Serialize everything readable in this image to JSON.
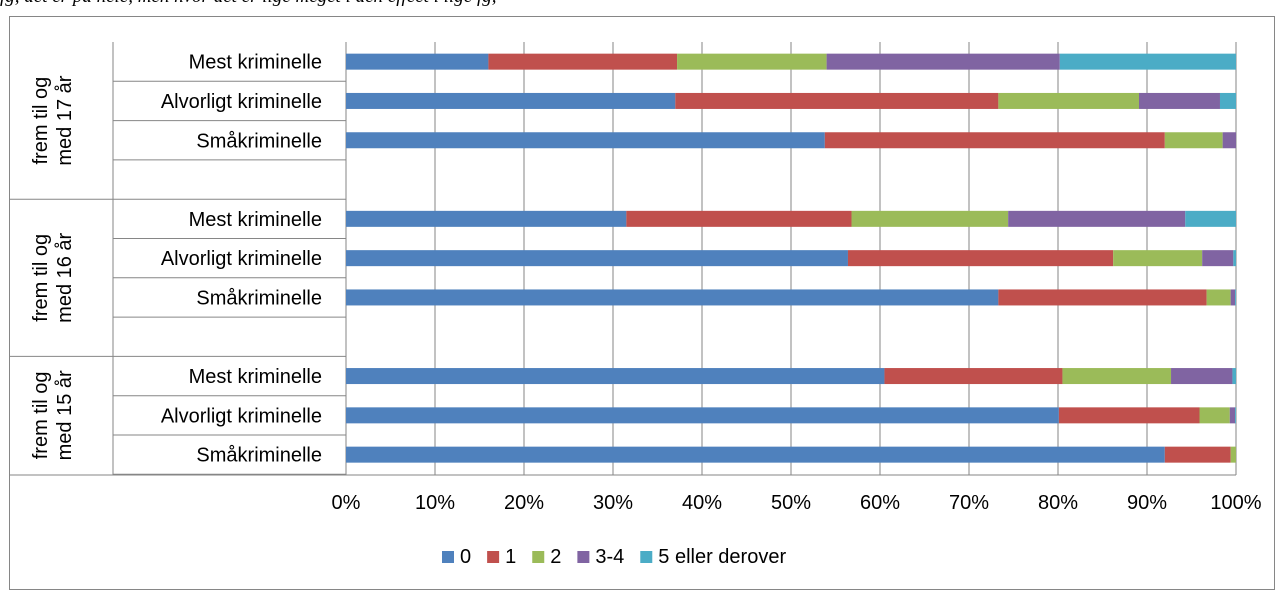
{
  "header_fragment": "fg, det er på hele, men hvor det er lige meget i den effect i lige fg,",
  "chart_data": {
    "type": "bar",
    "orientation": "horizontal",
    "stacked": "percent",
    "title": "",
    "xlabel": "",
    "ylabel": "",
    "xlim": [
      0,
      100
    ],
    "x_ticks": [
      "0%",
      "10%",
      "20%",
      "30%",
      "40%",
      "50%",
      "60%",
      "70%",
      "80%",
      "90%",
      "100%"
    ],
    "grid": "vertical",
    "legend_position": "bottom",
    "groups": [
      {
        "label": "frem til og med 17 år",
        "categories": [
          "Mest kriminelle",
          "Alvorligt kriminelle",
          "Småkriminelle"
        ]
      },
      {
        "label": "frem til og med 16 år",
        "categories": [
          "Mest kriminelle",
          "Alvorligt kriminelle",
          "Småkriminelle"
        ]
      },
      {
        "label": "frem til og med 15 år",
        "categories": [
          "Mest kriminelle",
          "Alvorligt kriminelle",
          "Småkriminelle"
        ]
      }
    ],
    "series": [
      {
        "name": "0",
        "color": "#4f81bd",
        "values": [
          16,
          37,
          53.8,
          31.5,
          56.4,
          73.3,
          60.5,
          80.1,
          92
        ]
      },
      {
        "name": "1",
        "color": "#c0504d",
        "values": [
          21.2,
          36.3,
          38.2,
          25.3,
          29.8,
          23.4,
          20,
          15.8,
          7.4
        ]
      },
      {
        "name": "2",
        "color": "#9bbb59",
        "values": [
          16.8,
          15.8,
          6.5,
          17.6,
          10,
          2.7,
          12.2,
          3.4,
          0.6
        ]
      },
      {
        "name": "3-4",
        "color": "#8064a2",
        "values": [
          26.2,
          9.1,
          1.5,
          19.9,
          3.5,
          0.5,
          6.9,
          0.6,
          0
        ]
      },
      {
        "name": "5 eller derover",
        "color": "#4bacc6",
        "values": [
          19.8,
          1.8,
          0,
          5.7,
          0.3,
          0.1,
          0.4,
          0.1,
          0
        ]
      }
    ]
  }
}
